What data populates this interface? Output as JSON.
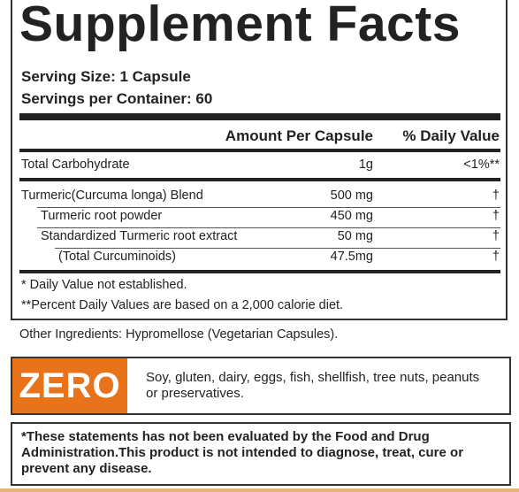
{
  "title": "Supplement Facts",
  "serving_size": "Serving Size: 1 Capsule",
  "servings_per_container": "Servings per Container: 60",
  "table": {
    "header": [
      "Amount Per Capsule",
      "% Daily Value"
    ],
    "rows": [
      [
        "Total Carbohydrate",
        "1g",
        "<1%**"
      ],
      [
        "Turmeric(Curcuma longa) Blend",
        "500 mg",
        "†"
      ],
      [
        "Turmeric root powder",
        "450 mg",
        "†"
      ],
      [
        "Standardized Turmeric root extract",
        "50 mg",
        "†"
      ],
      [
        "(Total Curcuminoids)",
        "47.5mg",
        "†"
      ]
    ]
  },
  "footnotes": [
    "* Daily Value not established.",
    "**Percent Daily Values are based on a 2,000 calorie diet."
  ],
  "other_ingredients": "Other Ingredients: Hypromellose (Vegetarian Capsules).",
  "free_from": {
    "badge": "ZERO",
    "text": "Soy, gluten, dairy, eggs, fish, shellfish, tree nuts, peanuts or preservatives."
  },
  "disclaimer": "*These statements has not been evaluated by the Food and Drug Administration.This product is not intended to diagnose, treat, cure or prevent any disease."
}
